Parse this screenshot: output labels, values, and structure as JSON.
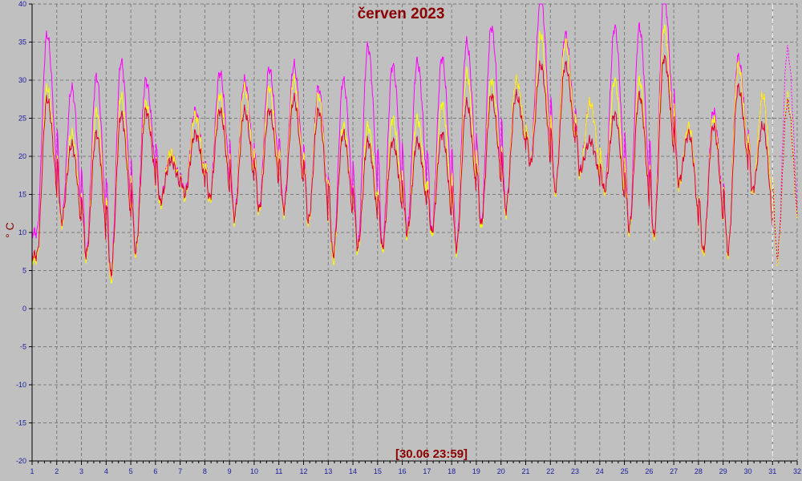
{
  "chart_data": {
    "type": "line",
    "title": "červen 2023",
    "ylabel": "° C",
    "timestamp": "[30.06 23:59]",
    "ylim": [
      -20,
      40
    ],
    "xlim": [
      1,
      32
    ],
    "yticks": [
      -20,
      -15,
      -10,
      -5,
      0,
      5,
      10,
      15,
      20,
      25,
      30,
      35,
      40
    ],
    "yticklabels": [
      "-20",
      "-15",
      "-10",
      "-5",
      "0",
      "5",
      "10",
      "15",
      "20",
      "25",
      "30",
      "35",
      "40"
    ],
    "xticks": [
      1,
      2,
      3,
      4,
      5,
      6,
      7,
      8,
      9,
      10,
      11,
      12,
      13,
      14,
      15,
      16,
      17,
      18,
      19,
      20,
      21,
      22,
      23,
      24,
      25,
      26,
      27,
      28,
      29,
      30,
      31,
      32
    ],
    "xticklabels": [
      "1",
      "2",
      "3",
      "4",
      "5",
      "6",
      "7",
      "8",
      "9",
      "10",
      "11",
      "12",
      "13",
      "14",
      "15",
      "16",
      "17",
      "18",
      "19",
      "20",
      "21",
      "22",
      "23",
      "24",
      "25",
      "26",
      "27",
      "28",
      "29",
      "30",
      "31",
      "32"
    ],
    "grid": true,
    "current_marker_x": 31,
    "days": [
      1,
      2,
      3,
      4,
      5,
      6,
      7,
      8,
      9,
      10,
      11,
      12,
      13,
      14,
      15,
      16,
      17,
      18,
      19,
      20,
      21,
      22,
      23,
      24,
      25,
      26,
      27,
      28,
      29,
      30,
      31
    ],
    "series": [
      {
        "color": "#ff00ff",
        "min": [
          10,
          11,
          7,
          4,
          7,
          14,
          15,
          14,
          12,
          13,
          13,
          11,
          6,
          8,
          8,
          10,
          10,
          8,
          11,
          13,
          19,
          15,
          18,
          15,
          10,
          9,
          16,
          7,
          7,
          15,
          6
        ],
        "max": [
          36,
          29,
          30.5,
          32.5,
          30,
          20.5,
          26,
          31,
          30,
          31.5,
          32,
          29,
          30,
          34.5,
          32,
          32.5,
          33,
          35,
          37,
          30,
          41,
          36,
          27,
          37,
          37,
          41,
          24,
          26,
          33,
          28,
          34
        ]
      },
      {
        "color": "#ffff00",
        "min": [
          6.5,
          11,
          6.5,
          3.5,
          7,
          13.5,
          14.5,
          14,
          11.5,
          12.5,
          12.5,
          11,
          6,
          7.5,
          7.5,
          9.5,
          9.5,
          7.5,
          10.5,
          12.5,
          19,
          15,
          17.5,
          15,
          10,
          9,
          16,
          7,
          7,
          15,
          6
        ],
        "max": [
          29,
          23,
          26,
          28,
          27,
          20.5,
          25.5,
          28,
          29,
          29,
          30,
          28,
          24,
          24,
          25,
          25,
          27,
          31,
          30,
          30,
          36,
          35,
          27,
          30,
          30,
          37,
          24,
          25,
          32,
          28,
          28
        ]
      },
      {
        "color": "#dd0033",
        "min": [
          7,
          11.5,
          7,
          4.5,
          7.5,
          14,
          15,
          14.5,
          12,
          13,
          13,
          11.5,
          7,
          8,
          8,
          10,
          10,
          8,
          11,
          13,
          19,
          15.5,
          18,
          15.5,
          10.5,
          9.5,
          16.5,
          7.5,
          7.5,
          15.5,
          7
        ],
        "max": [
          27.5,
          21.5,
          23,
          25.5,
          26,
          19.5,
          23,
          26,
          26,
          26,
          27.5,
          26,
          23,
          22,
          22,
          22,
          23,
          27,
          28,
          28,
          32,
          32,
          22,
          25.5,
          28,
          33,
          23,
          24,
          29,
          24,
          27
        ]
      }
    ]
  }
}
